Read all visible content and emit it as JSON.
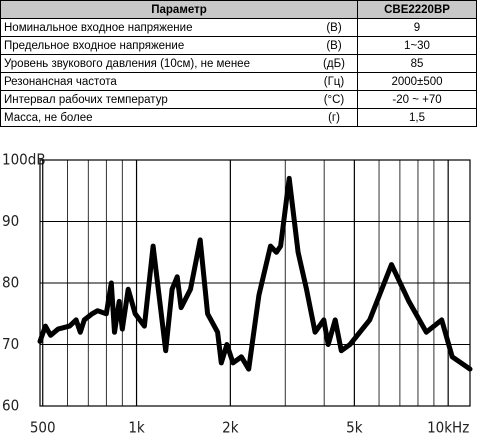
{
  "table": {
    "header": [
      "Параметр",
      "CBE2220BP"
    ],
    "rows": [
      [
        "Номинальное входное напряжение",
        "(В)",
        "9"
      ],
      [
        "Предельное входное напряжение",
        "(В)",
        "1~30"
      ],
      [
        "Уровень звукового давления (10см), не менее",
        "(дБ)",
        "85"
      ],
      [
        "Резонансная частота",
        "(Гц)",
        "2000±500"
      ],
      [
        "Интервал рабочих температур",
        "(°С)",
        "-20 ~ +70"
      ],
      [
        "Масса, не более",
        "(г)",
        "1,5"
      ]
    ]
  },
  "chart_data": {
    "type": "line",
    "log_x": true,
    "x": [
      490,
      510,
      530,
      560,
      610,
      640,
      660,
      680,
      720,
      750,
      800,
      830,
      850,
      880,
      900,
      940,
      990,
      1060,
      1130,
      1240,
      1300,
      1350,
      1390,
      1490,
      1600,
      1690,
      1820,
      1870,
      1950,
      2040,
      2170,
      2290,
      2470,
      2690,
      2810,
      2900,
      3090,
      3300,
      3510,
      3740,
      3990,
      4120,
      4340,
      4540,
      4840,
      5600,
      6580,
      7480,
      8510,
      9530,
      10300,
      11750
    ],
    "series": [
      {
        "color": "#000000",
        "values": [
          70.5,
          73,
          71.5,
          72.5,
          73,
          74,
          72,
          74,
          75,
          75.5,
          75,
          80,
          72,
          77,
          72.5,
          79,
          75,
          73,
          86,
          69,
          79,
          81,
          76,
          79,
          87,
          75,
          72,
          67,
          70,
          67,
          68,
          66,
          78,
          86,
          85,
          86,
          97,
          85,
          79,
          72,
          74,
          70,
          74,
          69,
          70,
          74,
          83,
          77,
          72,
          74,
          68,
          66
        ]
      }
    ],
    "xlim": [
      490,
      11750
    ],
    "xticks": [
      {
        "value": 500,
        "label": "500"
      },
      {
        "value": 1000,
        "label": "1k"
      },
      {
        "value": 2000,
        "label": "2k"
      },
      {
        "value": 5000,
        "label": "5k"
      },
      {
        "value": 10000,
        "label": "10kHz"
      }
    ],
    "x_grid_lines": [
      600,
      700,
      800,
      900,
      3000,
      4000,
      6000,
      7000,
      8000,
      9000
    ],
    "ylim": [
      60,
      100
    ],
    "yticks": [
      60,
      70,
      80,
      90,
      {
        "value": 100,
        "label": "100dB"
      }
    ],
    "grid": true
  }
}
